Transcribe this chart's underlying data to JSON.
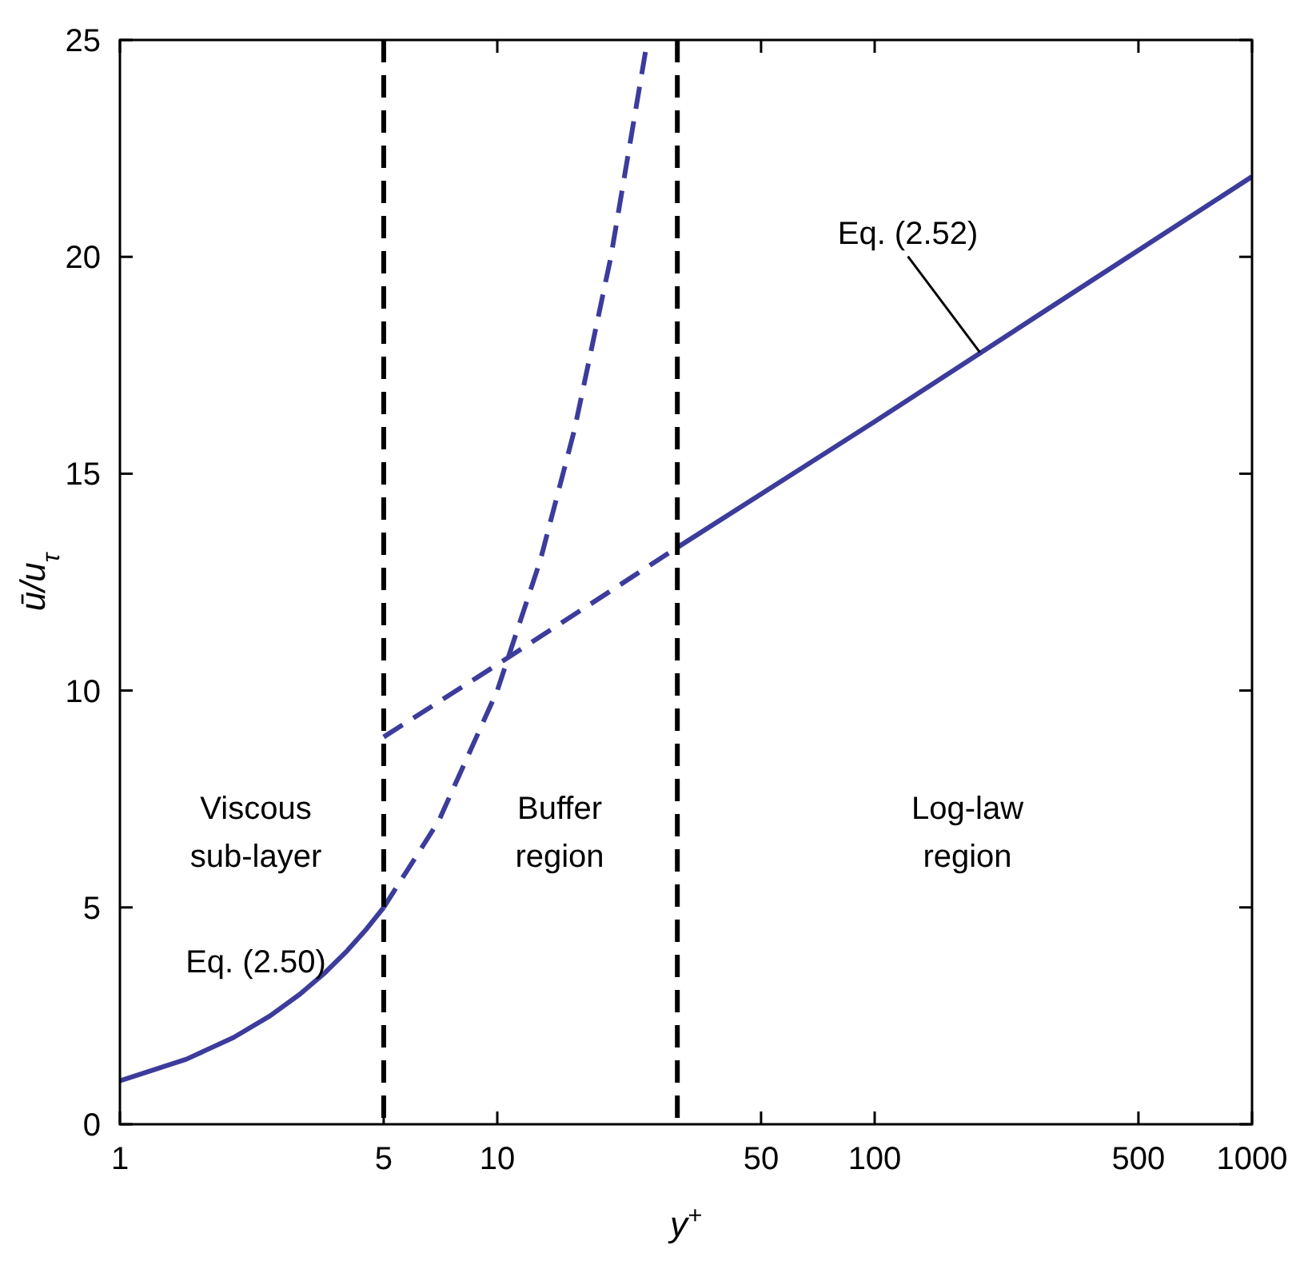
{
  "chart_data": {
    "type": "line",
    "xlabel": "y$^{+}$",
    "ylabel": "ū/u$_{τ}$",
    "log": "x",
    "xlim": [
      1,
      1000
    ],
    "xticks": [
      1,
      5,
      10,
      50,
      100,
      500,
      1000
    ],
    "ylim": [
      0,
      25
    ],
    "yticks": [
      0,
      5,
      10,
      15,
      20,
      25
    ],
    "grid": false,
    "series": [
      {
        "color": "#3c3c9c",
        "line_style": "solid",
        "x": [
          1,
          1.5,
          2,
          2.5,
          3,
          3.5,
          4,
          4.5,
          5
        ],
        "values": [
          1,
          1.5,
          2,
          2.5,
          3,
          3.5,
          4,
          4.5,
          5
        ]
      },
      {
        "color": "#3c3c9c",
        "line_style": "dashed",
        "x": [
          5,
          7,
          10,
          13,
          16,
          20,
          25
        ],
        "values": [
          5,
          7,
          10,
          13,
          16,
          20,
          25
        ]
      },
      {
        "color": "#3c3c9c",
        "line_style": "dashed",
        "x": [
          5,
          10,
          20,
          30
        ],
        "values": [
          8.93,
          10.6,
          12.3,
          13.3
        ]
      },
      {
        "color": "#3c3c9c",
        "line_style": "solid",
        "x": [
          30,
          100,
          300,
          1000
        ],
        "values": [
          13.3,
          16.2,
          18.9,
          21.85
        ]
      }
    ],
    "ref_lines": [
      {
        "axis": "x",
        "value": 5,
        "color": "#000000",
        "line_style": "dashed"
      },
      {
        "axis": "x",
        "value": 30,
        "color": "#000000",
        "line_style": "dashed"
      }
    ],
    "annotations": [
      "Viscous\nsub-layer",
      "Eq. (2.50)",
      "Buffer\nregion",
      "Log-law\nregion",
      {
        "text": "Eq. (2.52)",
        "x": 190,
        "y": 17.8
      }
    ]
  }
}
